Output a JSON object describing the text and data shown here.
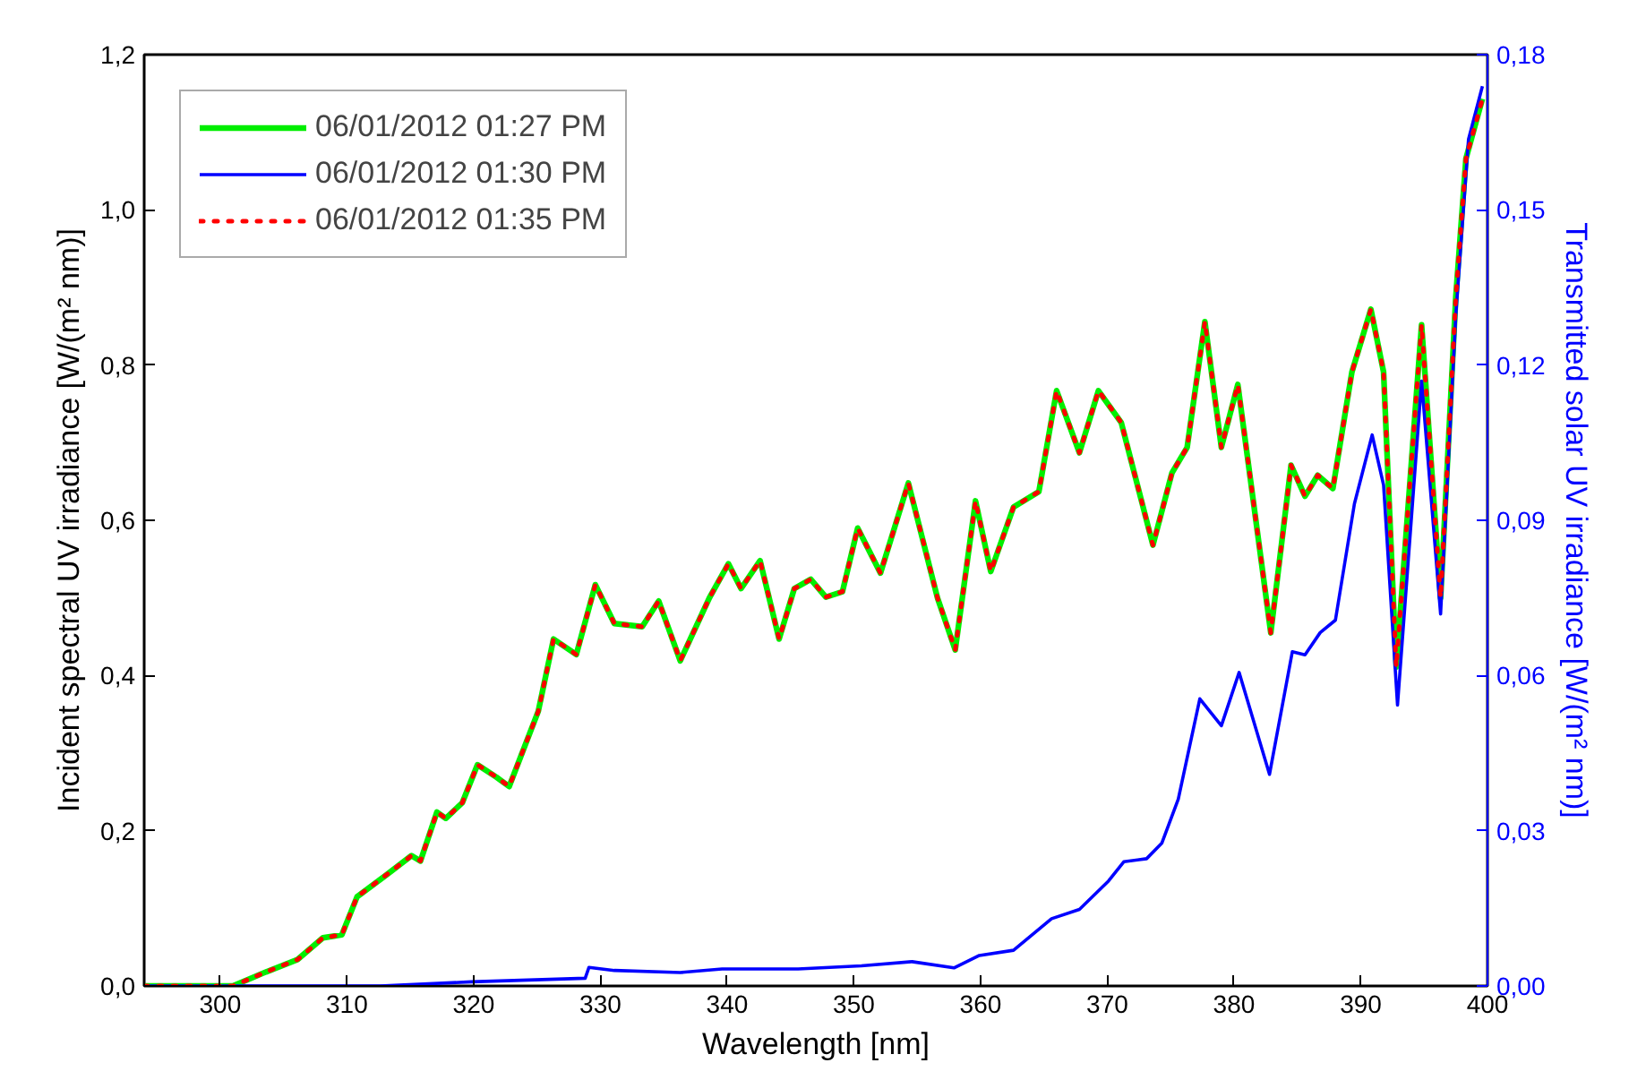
{
  "chart_data": {
    "type": "line",
    "xlabel": "Wavelength [nm]",
    "ylabel": "Incident spectral UV irradiance [W/(m² nm)]",
    "y2label": "Transmitted solar UV irradiance [W/(m² nm)]",
    "xlim": [
      294,
      400
    ],
    "xticks": [
      300,
      310,
      320,
      330,
      340,
      350,
      360,
      370,
      380,
      390,
      400
    ],
    "ylim": [
      0,
      1.2
    ],
    "yticks": [
      {
        "value": 0,
        "label": "0,0"
      },
      {
        "value": 0.2,
        "label": "0,2"
      },
      {
        "value": 0.4,
        "label": "0,4"
      },
      {
        "value": 0.6,
        "label": "0,6"
      },
      {
        "value": 0.8,
        "label": "0,8"
      },
      {
        "value": 1.0,
        "label": "1,0"
      },
      {
        "value": 1.2,
        "label": "1,2"
      }
    ],
    "y2lim": [
      0,
      0.18
    ],
    "y2ticks": [
      {
        "value": 0,
        "label": "0,00"
      },
      {
        "value": 0.03,
        "label": "0,03"
      },
      {
        "value": 0.06,
        "label": "0,06"
      },
      {
        "value": 0.09,
        "label": "0,09"
      },
      {
        "value": 0.12,
        "label": "0,12"
      },
      {
        "value": 0.15,
        "label": "0,15"
      },
      {
        "value": 0.18,
        "label": "0,18"
      }
    ],
    "legend": "top left",
    "grid": false,
    "x": [
      294,
      301,
      303.6,
      306.1,
      308.1,
      309.6,
      310.8,
      313.1,
      315.1,
      315.8,
      317.1,
      317.8,
      319.1,
      320.3,
      321.8,
      322.8,
      325.1,
      326.3,
      328.1,
      329.6,
      331.1,
      333.3,
      334.6,
      336.3,
      338.6,
      340.1,
      341.1,
      342.6,
      344.1,
      345.3,
      346.6,
      347.8,
      349.1,
      350.3,
      352.1,
      354.3,
      356.6,
      358.0,
      359.6,
      360.8,
      362.6,
      364.6,
      366.0,
      367.8,
      369.3,
      371.1,
      373.6,
      375.1,
      376.3,
      377.7,
      379.0,
      380.3,
      382.9,
      384.5,
      385.6,
      386.6,
      387.8,
      389.3,
      390.8,
      391.8,
      392.8,
      394.8,
      396.3,
      397.5,
      398.3,
      399.6
    ],
    "series": [
      {
        "name": "06/01/2012 01:27 PM",
        "color": "#00ee00",
        "line_style": "solid",
        "values": [
          0,
          0,
          0.018,
          0.034,
          0.062,
          0.066,
          0.115,
          0.143,
          0.168,
          0.161,
          0.224,
          0.216,
          0.236,
          0.285,
          0.269,
          0.257,
          0.354,
          0.447,
          0.427,
          0.517,
          0.467,
          0.463,
          0.496,
          0.419,
          0.5,
          0.544,
          0.512,
          0.548,
          0.447,
          0.512,
          0.524,
          0.501,
          0.508,
          0.59,
          0.532,
          0.648,
          0.5,
          0.433,
          0.625,
          0.534,
          0.617,
          0.637,
          0.767,
          0.687,
          0.767,
          0.726,
          0.568,
          0.661,
          0.694,
          0.856,
          0.694,
          0.775,
          0.455,
          0.671,
          0.631,
          0.658,
          0.641,
          0.791,
          0.872,
          0.791,
          0.411,
          0.852,
          0.5,
          0.888,
          1.066,
          1.143
        ]
      },
      {
        "name": "06/01/2012 01:30 PM",
        "color": "#0000ff",
        "line_style": "solid",
        "axis": "y2",
        "x": [
          294,
          312.6,
          319.8,
          328.8,
          329.1,
          331.1,
          336.3,
          339.6,
          345.6,
          350.6,
          354.6,
          357.9,
          359.9,
          362.6,
          365.6,
          367.8,
          370.1,
          371.3,
          373.1,
          374.3,
          375.6,
          377.3,
          379.0,
          380.4,
          382.8,
          384.6,
          385.6,
          386.8,
          388.0,
          389.5,
          390.9,
          391.8,
          392.9,
          394.8,
          396.3,
          397.5,
          398.5,
          399.6
        ],
        "values": [
          0,
          0,
          0.0008,
          0.0015,
          0.0036,
          0.003,
          0.0026,
          0.0033,
          0.0033,
          0.0039,
          0.0047,
          0.0035,
          0.0059,
          0.0069,
          0.013,
          0.0148,
          0.0203,
          0.024,
          0.0246,
          0.0276,
          0.0361,
          0.0555,
          0.0503,
          0.0606,
          0.0409,
          0.0646,
          0.064,
          0.0683,
          0.0707,
          0.0932,
          0.1065,
          0.0968,
          0.0543,
          0.1169,
          0.0719,
          0.1296,
          0.1636,
          0.1739
        ]
      },
      {
        "name": "06/01/2012 01:35 PM",
        "color": "#ff0000",
        "line_style": "dotted",
        "values": [
          0,
          0,
          0.018,
          0.034,
          0.062,
          0.066,
          0.115,
          0.143,
          0.168,
          0.161,
          0.224,
          0.216,
          0.236,
          0.285,
          0.269,
          0.257,
          0.354,
          0.447,
          0.427,
          0.517,
          0.467,
          0.463,
          0.496,
          0.419,
          0.5,
          0.544,
          0.512,
          0.548,
          0.447,
          0.512,
          0.524,
          0.501,
          0.508,
          0.59,
          0.532,
          0.648,
          0.5,
          0.433,
          0.625,
          0.534,
          0.617,
          0.637,
          0.767,
          0.687,
          0.767,
          0.726,
          0.568,
          0.661,
          0.694,
          0.856,
          0.694,
          0.775,
          0.455,
          0.671,
          0.631,
          0.658,
          0.641,
          0.791,
          0.872,
          0.791,
          0.411,
          0.852,
          0.5,
          0.888,
          1.066,
          1.143
        ]
      }
    ]
  }
}
